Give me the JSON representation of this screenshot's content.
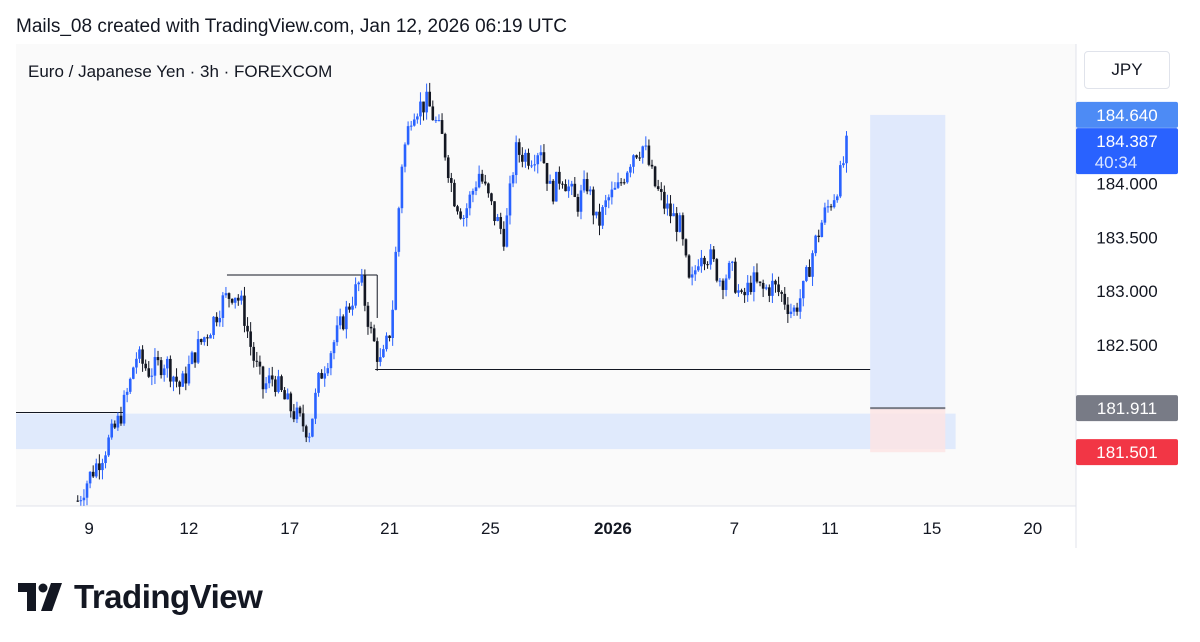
{
  "header": {
    "caption": "Mails_08 created with TradingView.com, Jan 12, 2026 06:19 UTC"
  },
  "chart_header": {
    "symbol": "Euro / Japanese Yen · 3h · FOREXCOM"
  },
  "currency": "JPY",
  "brand": {
    "name": "TradingView"
  },
  "colors": {
    "up": "#2962ff",
    "down": "#131722",
    "accent": "#2962ff",
    "target_label": "#4d8bf5",
    "stop_label": "#f23645",
    "entry_label": "#787b86",
    "zone_fill": "#dbe6fb",
    "target_fill": "#dbe5fb",
    "stop_fill": "#fbe4e4"
  },
  "chart_data": {
    "type": "candlestick",
    "title": "Euro / Japanese Yen · 3h · FOREXCOM",
    "ylim": [
      181.0,
      185.3
    ],
    "y_ticks": [
      184.0,
      183.5,
      183.0,
      182.5
    ],
    "x_ticks": [
      {
        "label": "9",
        "t": 7.1
      },
      {
        "label": "12",
        "t": 16.8
      },
      {
        "label": "17",
        "t": 26.6
      },
      {
        "label": "21",
        "t": 36.3
      },
      {
        "label": "25",
        "t": 46.1
      },
      {
        "label": "2026",
        "t": 58.0
      },
      {
        "label": "7",
        "t": 69.8
      },
      {
        "label": "11",
        "t": 79.1
      },
      {
        "label": "15",
        "t": 89.0
      },
      {
        "label": "20",
        "t": 98.8
      }
    ],
    "t_range": [
      0,
      103
    ],
    "price_labels": [
      {
        "name": "target",
        "value": "184.640",
        "price": 184.64
      },
      {
        "name": "current",
        "value": "184.387",
        "countdown": "40:34",
        "price": 184.387
      },
      {
        "name": "entry",
        "value": "181.911",
        "price": 181.911
      },
      {
        "name": "stop",
        "value": "181.501",
        "price": 181.501
      }
    ],
    "levels": [
      {
        "name": "left-support-line",
        "price": 181.87,
        "t_start": 0,
        "t_end": 10.4
      },
      {
        "name": "range-high-line",
        "price": 183.15,
        "t_start": 20.5,
        "t_end": 35.1
      },
      {
        "name": "range-low-line",
        "price": 182.27,
        "t_start": 34.9,
        "t_end": 83.0
      }
    ],
    "zones": [
      {
        "name": "demand-zone",
        "top": 181.86,
        "bottom": 181.53,
        "t_start": 0,
        "t_end": 91.3
      },
      {
        "name": "target-zone",
        "top": 184.64,
        "bottom": 181.911,
        "t_start": 83.0,
        "t_end": 90.3
      },
      {
        "name": "stop-zone",
        "top": 181.911,
        "bottom": 181.501,
        "t_start": 83.0,
        "t_end": 90.3
      }
    ],
    "path": [
      [
        6.0,
        181.05
      ],
      [
        7.0,
        181.25
      ],
      [
        8.5,
        181.5
      ],
      [
        10.0,
        181.8
      ],
      [
        11.0,
        182.1
      ],
      [
        11.6,
        182.4
      ],
      [
        13.0,
        182.25
      ],
      [
        14.5,
        182.35
      ],
      [
        16.0,
        182.1
      ],
      [
        17.5,
        182.45
      ],
      [
        18.8,
        182.65
      ],
      [
        20.0,
        182.9
      ],
      [
        21.2,
        183.0
      ],
      [
        22.0,
        182.85
      ],
      [
        23.0,
        182.4
      ],
      [
        24.0,
        182.1
      ],
      [
        25.0,
        182.2
      ],
      [
        26.0,
        182.0
      ],
      [
        27.5,
        181.8
      ],
      [
        28.5,
        181.7
      ],
      [
        29.5,
        182.2
      ],
      [
        31.0,
        182.55
      ],
      [
        32.5,
        182.9
      ],
      [
        33.5,
        183.1
      ],
      [
        34.5,
        182.6
      ],
      [
        35.5,
        182.3
      ],
      [
        36.5,
        182.7
      ],
      [
        37.0,
        183.5
      ],
      [
        37.5,
        184.2
      ],
      [
        38.5,
        184.7
      ],
      [
        40.0,
        184.75
      ],
      [
        41.5,
        184.4
      ],
      [
        42.5,
        183.9
      ],
      [
        43.5,
        183.7
      ],
      [
        45.0,
        184.1
      ],
      [
        46.5,
        183.7
      ],
      [
        47.5,
        183.5
      ],
      [
        48.5,
        184.3
      ],
      [
        50.0,
        184.25
      ],
      [
        51.0,
        184.35
      ],
      [
        52.0,
        183.9
      ],
      [
        53.0,
        184.1
      ],
      [
        54.5,
        183.8
      ],
      [
        55.5,
        184.0
      ],
      [
        56.5,
        183.6
      ],
      [
        57.5,
        183.85
      ],
      [
        58.5,
        183.95
      ],
      [
        60.0,
        184.3
      ],
      [
        61.0,
        184.35
      ],
      [
        62.0,
        184.0
      ],
      [
        63.0,
        183.8
      ],
      [
        64.5,
        183.6
      ],
      [
        65.5,
        183.0
      ],
      [
        66.5,
        183.4
      ],
      [
        67.5,
        183.3
      ],
      [
        68.5,
        183.1
      ],
      [
        69.5,
        183.2
      ],
      [
        70.5,
        182.9
      ],
      [
        71.5,
        183.1
      ],
      [
        72.5,
        183.0
      ],
      [
        73.5,
        183.05
      ],
      [
        74.5,
        182.95
      ],
      [
        75.5,
        182.8
      ],
      [
        76.5,
        183.0
      ],
      [
        77.5,
        183.4
      ],
      [
        78.5,
        183.7
      ],
      [
        79.5,
        183.9
      ],
      [
        80.2,
        184.1
      ],
      [
        80.8,
        184.387
      ]
    ]
  }
}
